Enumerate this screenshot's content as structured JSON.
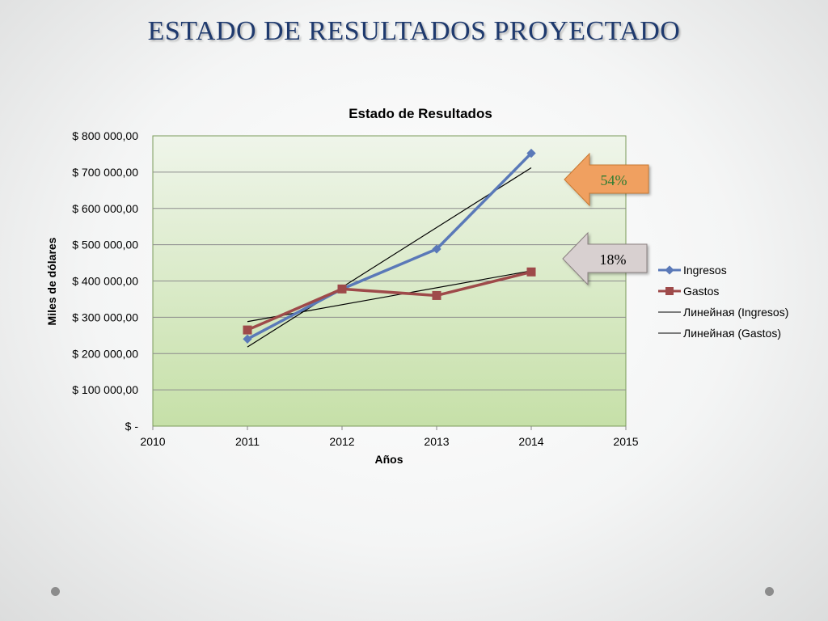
{
  "slide": {
    "title": "ESTADO DE RESULTADOS PROYECTADO"
  },
  "colors": {
    "ingresos": "#5a79b8",
    "gastos": "#9e4a4a",
    "trend": "#000000",
    "plot_top": "#eff5ea",
    "plot_bottom": "#c6e0a8",
    "callout_54": "#f0a060",
    "callout_18": "#d8d0d0"
  },
  "chart_data": {
    "type": "line",
    "title": "Estado de Resultados",
    "xlabel": "Años",
    "ylabel": "Miles de dólares",
    "xlim": [
      2010,
      2015
    ],
    "ylim": [
      0,
      800000
    ],
    "x_ticks": [
      "2010",
      "2011",
      "2012",
      "2013",
      "2014",
      "2015"
    ],
    "y_ticks": [
      "$ -",
      "$ 100 000,00",
      "$ 200 000,00",
      "$ 300 000,00",
      "$ 400 000,00",
      "$ 500 000,00",
      "$ 600 000,00",
      "$ 700 000,00",
      "$ 800 000,00"
    ],
    "grid": true,
    "legend": "right",
    "series": [
      {
        "name": "Ingresos",
        "marker": "diamond",
        "x": [
          2011,
          2012,
          2013,
          2014
        ],
        "values": [
          240000,
          378000,
          488000,
          752000
        ]
      },
      {
        "name": "Gastos",
        "marker": "square",
        "x": [
          2011,
          2012,
          2013,
          2014
        ],
        "values": [
          265000,
          378000,
          360000,
          425000
        ]
      }
    ],
    "trendlines": [
      {
        "name": "Линейная (Ingresos)",
        "x": [
          2011,
          2014
        ],
        "values": [
          218000,
          712000
        ]
      },
      {
        "name": "Линейная (Gastos)",
        "x": [
          2011,
          2014
        ],
        "values": [
          288000,
          428000
        ]
      }
    ],
    "annotations": [
      {
        "text": "54%",
        "series": "Ingresos"
      },
      {
        "text": "18%",
        "series": "Gastos"
      }
    ]
  }
}
